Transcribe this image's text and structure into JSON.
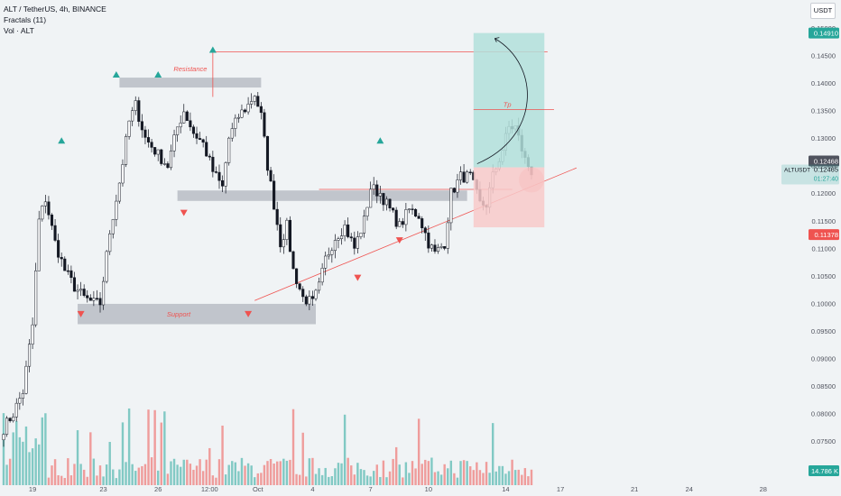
{
  "header": {
    "symbol_line": "ALT / TetherUS, 4h, BINANCE",
    "indicator1": "Fractals (11)",
    "indicator2": "Vol · ALT"
  },
  "currency": "USDT",
  "colors": {
    "background": "#f0f3f5",
    "up": "#26a69a",
    "down": "#ef5350",
    "body_up": "#ffffff",
    "body_down": "#131722",
    "zone": "#b2b5be",
    "trend": "#ef5350",
    "target_zone": "#b2dfdb",
    "stop_zone": "#f8c9c9"
  },
  "annotations": {
    "resistance_label": "Resistance",
    "support_label": "Support",
    "tp_label": "Tp"
  },
  "price_labels": {
    "target": "0.14910",
    "last": "0.12468",
    "symbol": "ALTUSDT",
    "current": "0.12465",
    "countdown": "01:27:40",
    "stop": "0.11378",
    "volume": "14.786 K"
  },
  "chart_data": {
    "type": "candlestick",
    "title": "ALT / TetherUS, 4h, BINANCE",
    "yaxis": {
      "min": 0.0663,
      "max": 0.1533,
      "ticks": [
        "0.15000",
        "0.14500",
        "0.14000",
        "0.13500",
        "0.13000",
        "0.12500",
        "0.12000",
        "0.11500",
        "0.11000",
        "0.10500",
        "0.10000",
        "0.09500",
        "0.09000",
        "0.08500",
        "0.08000",
        "0.07500",
        "0.07000"
      ]
    },
    "xaxis": {
      "index_range": [
        0,
        235
      ],
      "ticks": [
        {
          "label": "19",
          "i": 9
        },
        {
          "label": "23",
          "i": 31
        },
        {
          "label": "26",
          "i": 48
        },
        {
          "label": "12:00",
          "i": 64
        },
        {
          "label": "Oct",
          "i": 79
        },
        {
          "label": "4",
          "i": 96
        },
        {
          "label": "7",
          "i": 114
        },
        {
          "label": "10",
          "i": 132
        },
        {
          "label": "14",
          "i": 156
        },
        {
          "label": "17",
          "i": 173
        },
        {
          "label": "21",
          "i": 196
        },
        {
          "label": "24",
          "i": 213
        },
        {
          "label": "28",
          "i": 236
        }
      ]
    },
    "waypoints": [
      [
        0,
        0.0773
      ],
      [
        3,
        0.08
      ],
      [
        6,
        0.084
      ],
      [
        9,
        0.096
      ],
      [
        11,
        0.115
      ],
      [
        13,
        0.119
      ],
      [
        16,
        0.111
      ],
      [
        19,
        0.106
      ],
      [
        22,
        0.103
      ],
      [
        25,
        0.101
      ],
      [
        28,
        0.1
      ],
      [
        30,
        0.1
      ],
      [
        33,
        0.113
      ],
      [
        36,
        0.122
      ],
      [
        39,
        0.133
      ],
      [
        41,
        0.136
      ],
      [
        44,
        0.13
      ],
      [
        48,
        0.127
      ],
      [
        51,
        0.125
      ],
      [
        54,
        0.132
      ],
      [
        56,
        0.135
      ],
      [
        59,
        0.131
      ],
      [
        62,
        0.129
      ],
      [
        65,
        0.124
      ],
      [
        68,
        0.121
      ],
      [
        70,
        0.13
      ],
      [
        73,
        0.134
      ],
      [
        76,
        0.136
      ],
      [
        78,
        0.138
      ],
      [
        80,
        0.134
      ],
      [
        82,
        0.125
      ],
      [
        84,
        0.118
      ],
      [
        86,
        0.111
      ],
      [
        88,
        0.114
      ],
      [
        90,
        0.106
      ],
      [
        93,
        0.101
      ],
      [
        96,
        0.1
      ],
      [
        98,
        0.103
      ],
      [
        100,
        0.108
      ],
      [
        103,
        0.112
      ],
      [
        106,
        0.114
      ],
      [
        109,
        0.11
      ],
      [
        112,
        0.115
      ],
      [
        114,
        0.121
      ],
      [
        117,
        0.12
      ],
      [
        120,
        0.117
      ],
      [
        123,
        0.114
      ],
      [
        126,
        0.117
      ],
      [
        129,
        0.116
      ],
      [
        132,
        0.111
      ],
      [
        134,
        0.109
      ],
      [
        137,
        0.111
      ],
      [
        139,
        0.12
      ],
      [
        142,
        0.123
      ],
      [
        145,
        0.123
      ],
      [
        148,
        0.118
      ],
      [
        150,
        0.118
      ],
      [
        152,
        0.123
      ],
      [
        155,
        0.128
      ],
      [
        157,
        0.132
      ],
      [
        159,
        0.132
      ],
      [
        162,
        0.126
      ],
      [
        164,
        0.124
      ]
    ],
    "fractals_up": [
      {
        "i": 18,
        "price": 0.1295
      },
      {
        "i": 65,
        "price": 0.146
      },
      {
        "i": 48,
        "price": 0.1415
      },
      {
        "i": 35,
        "price": 0.1415
      },
      {
        "i": 117,
        "price": 0.1295
      }
    ],
    "fractals_down": [
      {
        "i": 24,
        "price": 0.0981
      },
      {
        "i": 56,
        "price": 0.1165
      },
      {
        "i": 76,
        "price": 0.0981
      },
      {
        "i": 110,
        "price": 0.1047
      },
      {
        "i": 123,
        "price": 0.1115
      }
    ],
    "resistance_zone": {
      "i0": 36,
      "i1": 80,
      "p_low": 0.1392,
      "p_high": 0.141
    },
    "support_zone": {
      "i0": 23,
      "i1": 97,
      "p_low": 0.0962,
      "p_high": 0.0999
    },
    "mid_zone": {
      "i0": 54,
      "i1": 144,
      "p_low": 0.1186,
      "p_high": 0.1205
    },
    "resistance_line": {
      "i0": 65,
      "i1": 169,
      "price": 0.1457
    },
    "mid_line": {
      "i0": 98,
      "i1": 158,
      "price": 0.1207
    },
    "trendline": {
      "i0": 78,
      "p0": 0.1005,
      "i1": 178,
      "p1": 0.1246
    },
    "tp_line": {
      "i0": 146,
      "i1": 171,
      "price": 0.1352
    },
    "position": {
      "i0": 146,
      "i1": 168,
      "target": 0.1491,
      "entry": 0.1247,
      "stop": 0.1138
    },
    "volume": {
      "max_k": 80
    }
  }
}
